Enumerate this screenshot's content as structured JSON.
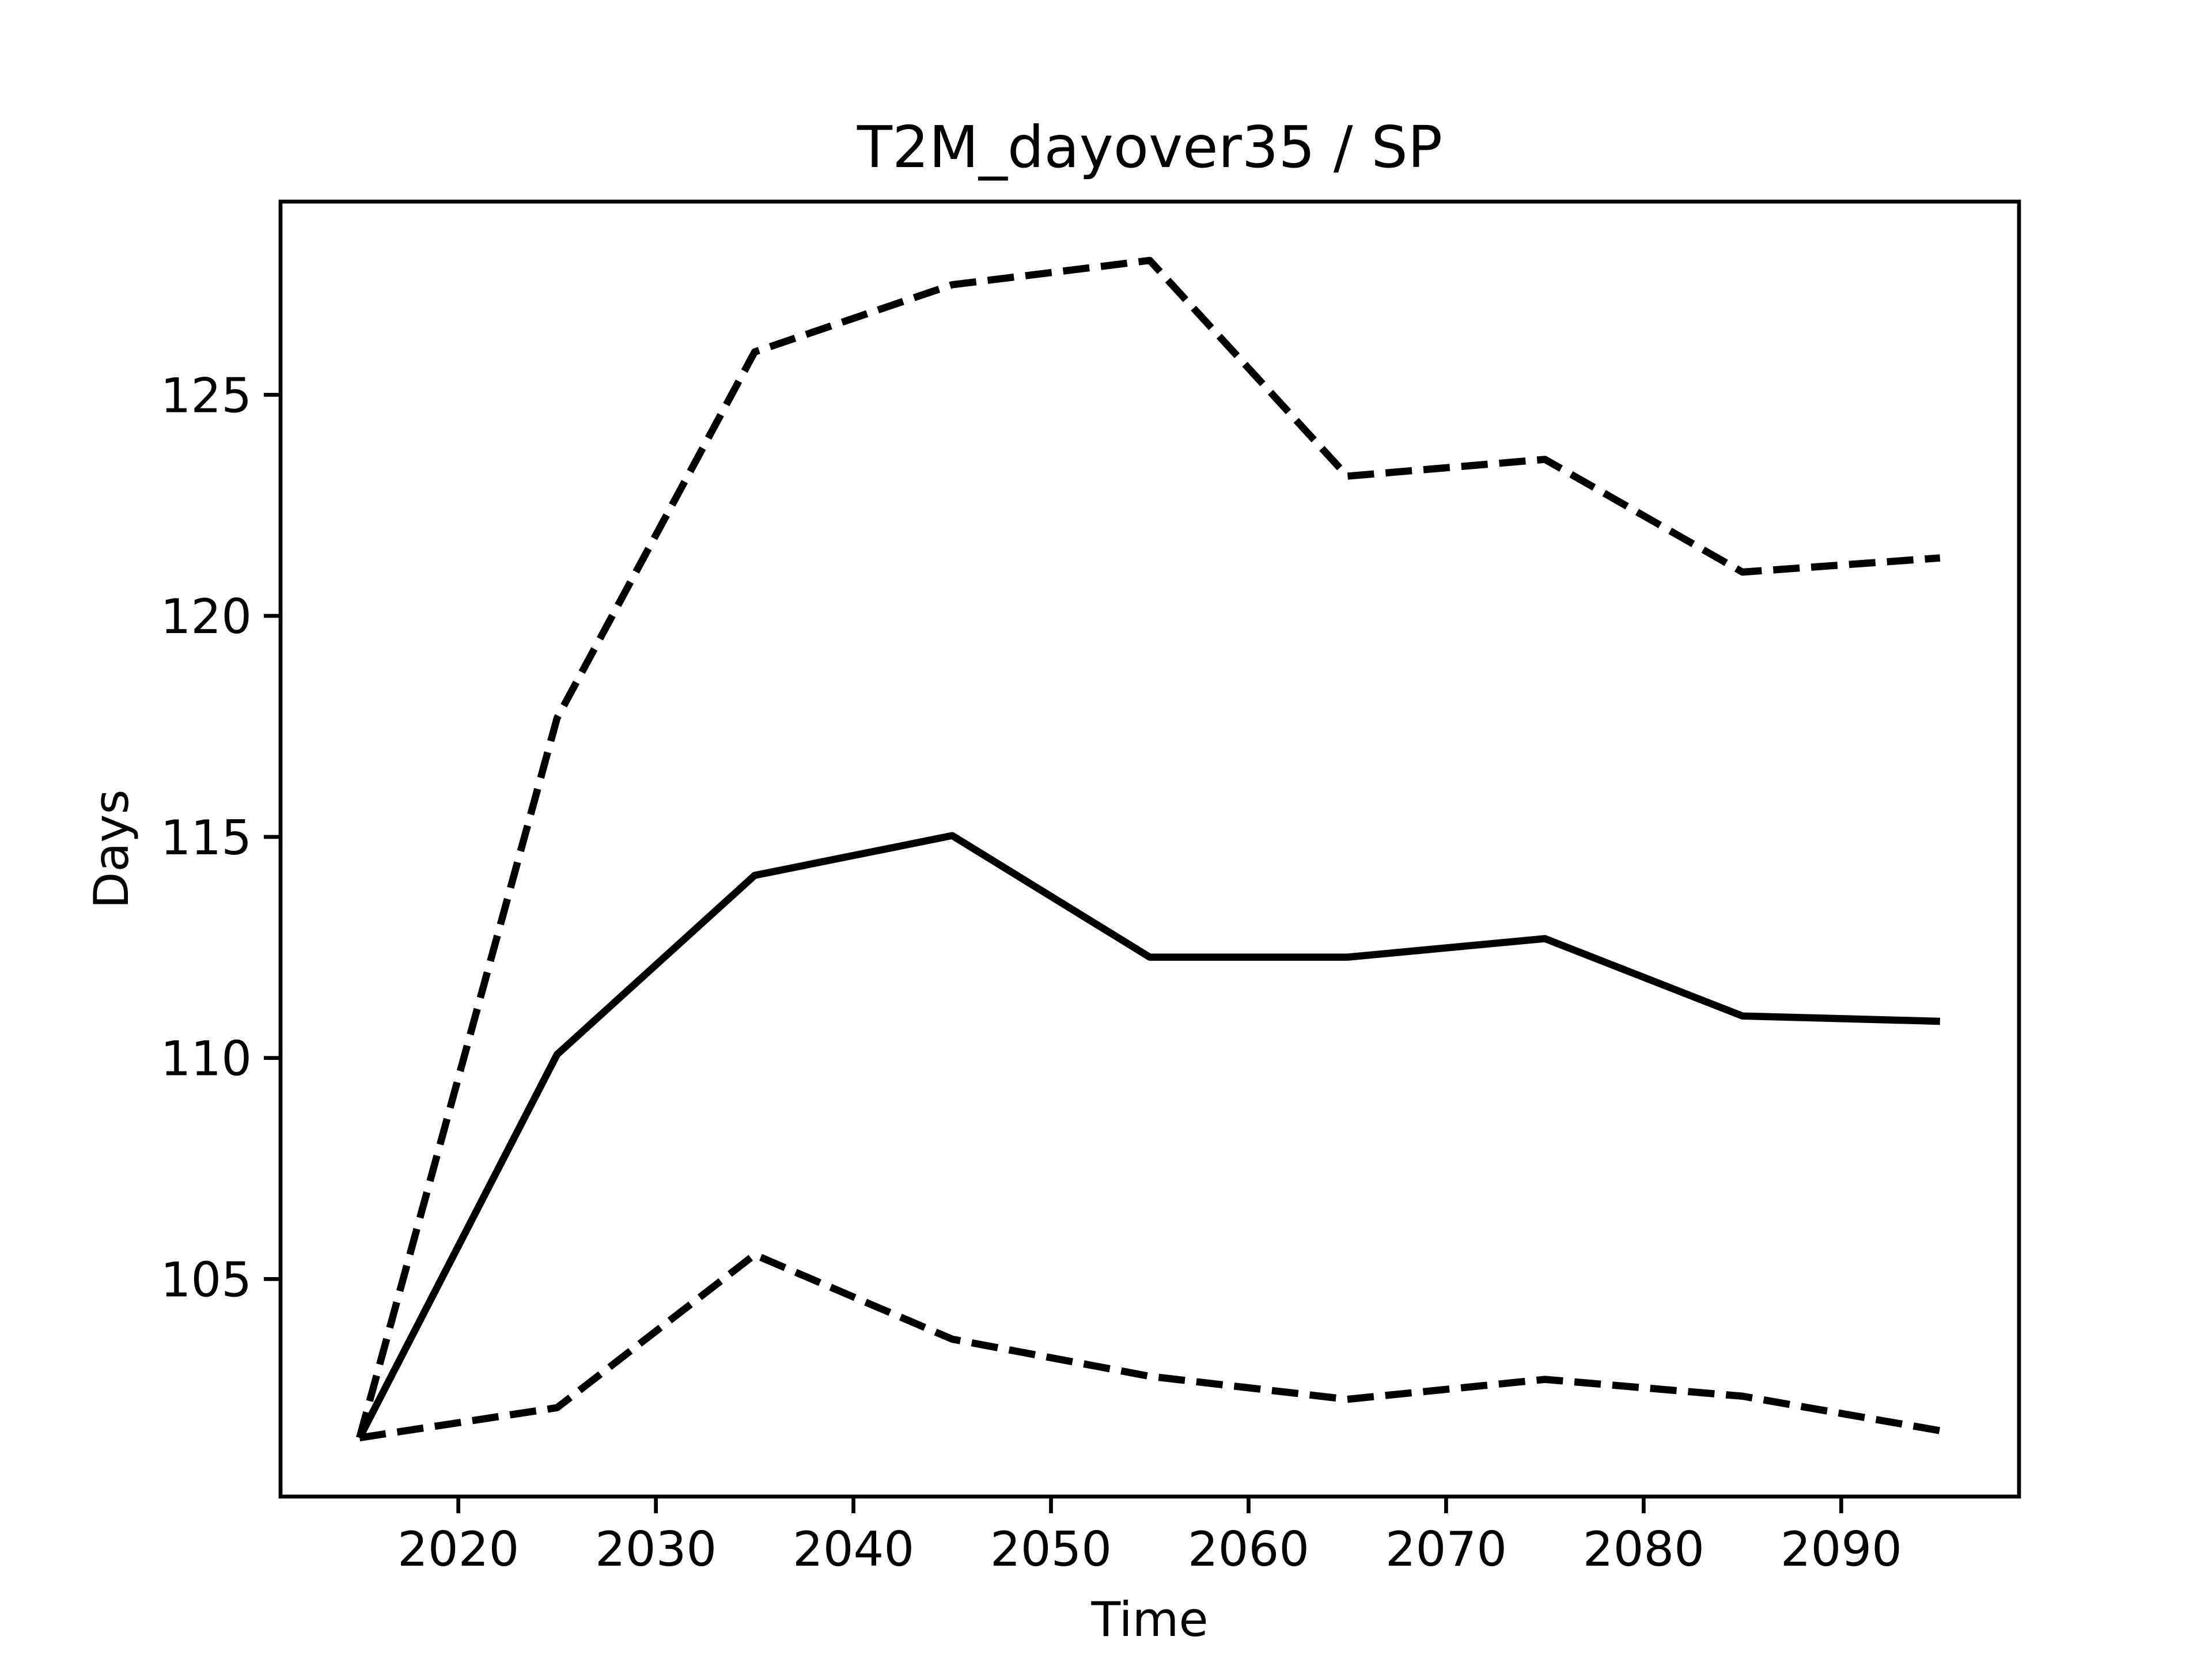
{
  "chart_data": {
    "type": "line",
    "title": "T2M_dayover35 / SP",
    "x_label": "Time",
    "y_label": "Days",
    "x": [
      2015,
      2025,
      2035,
      2045,
      2055,
      2065,
      2075,
      2085,
      2095
    ],
    "series": [
      {
        "color": "#000000",
        "linestyle": "solid",
        "values": [
          101.41,
          110.08,
          114.13,
          115.03,
          112.28,
          112.28,
          112.7,
          110.95,
          110.83
        ]
      },
      {
        "color": "#000000",
        "linestyle": "dashed",
        "values": [
          101.41,
          117.69,
          125.97,
          127.49,
          128.04,
          123.16,
          123.54,
          120.99,
          121.31
        ]
      },
      {
        "color": "#000000",
        "linestyle": "dashed",
        "values": [
          101.41,
          102.09,
          105.55,
          103.64,
          102.8,
          102.28,
          102.73,
          102.35,
          101.57
        ]
      }
    ],
    "xlim": [
      2011,
      2099
    ],
    "xticks": [
      2020,
      2030,
      2040,
      2050,
      2060,
      2070,
      2080,
      2090
    ],
    "ylim": [
      100.08,
      129.37
    ],
    "yticks": [
      105,
      110,
      115,
      120,
      125
    ],
    "grid": false
  }
}
